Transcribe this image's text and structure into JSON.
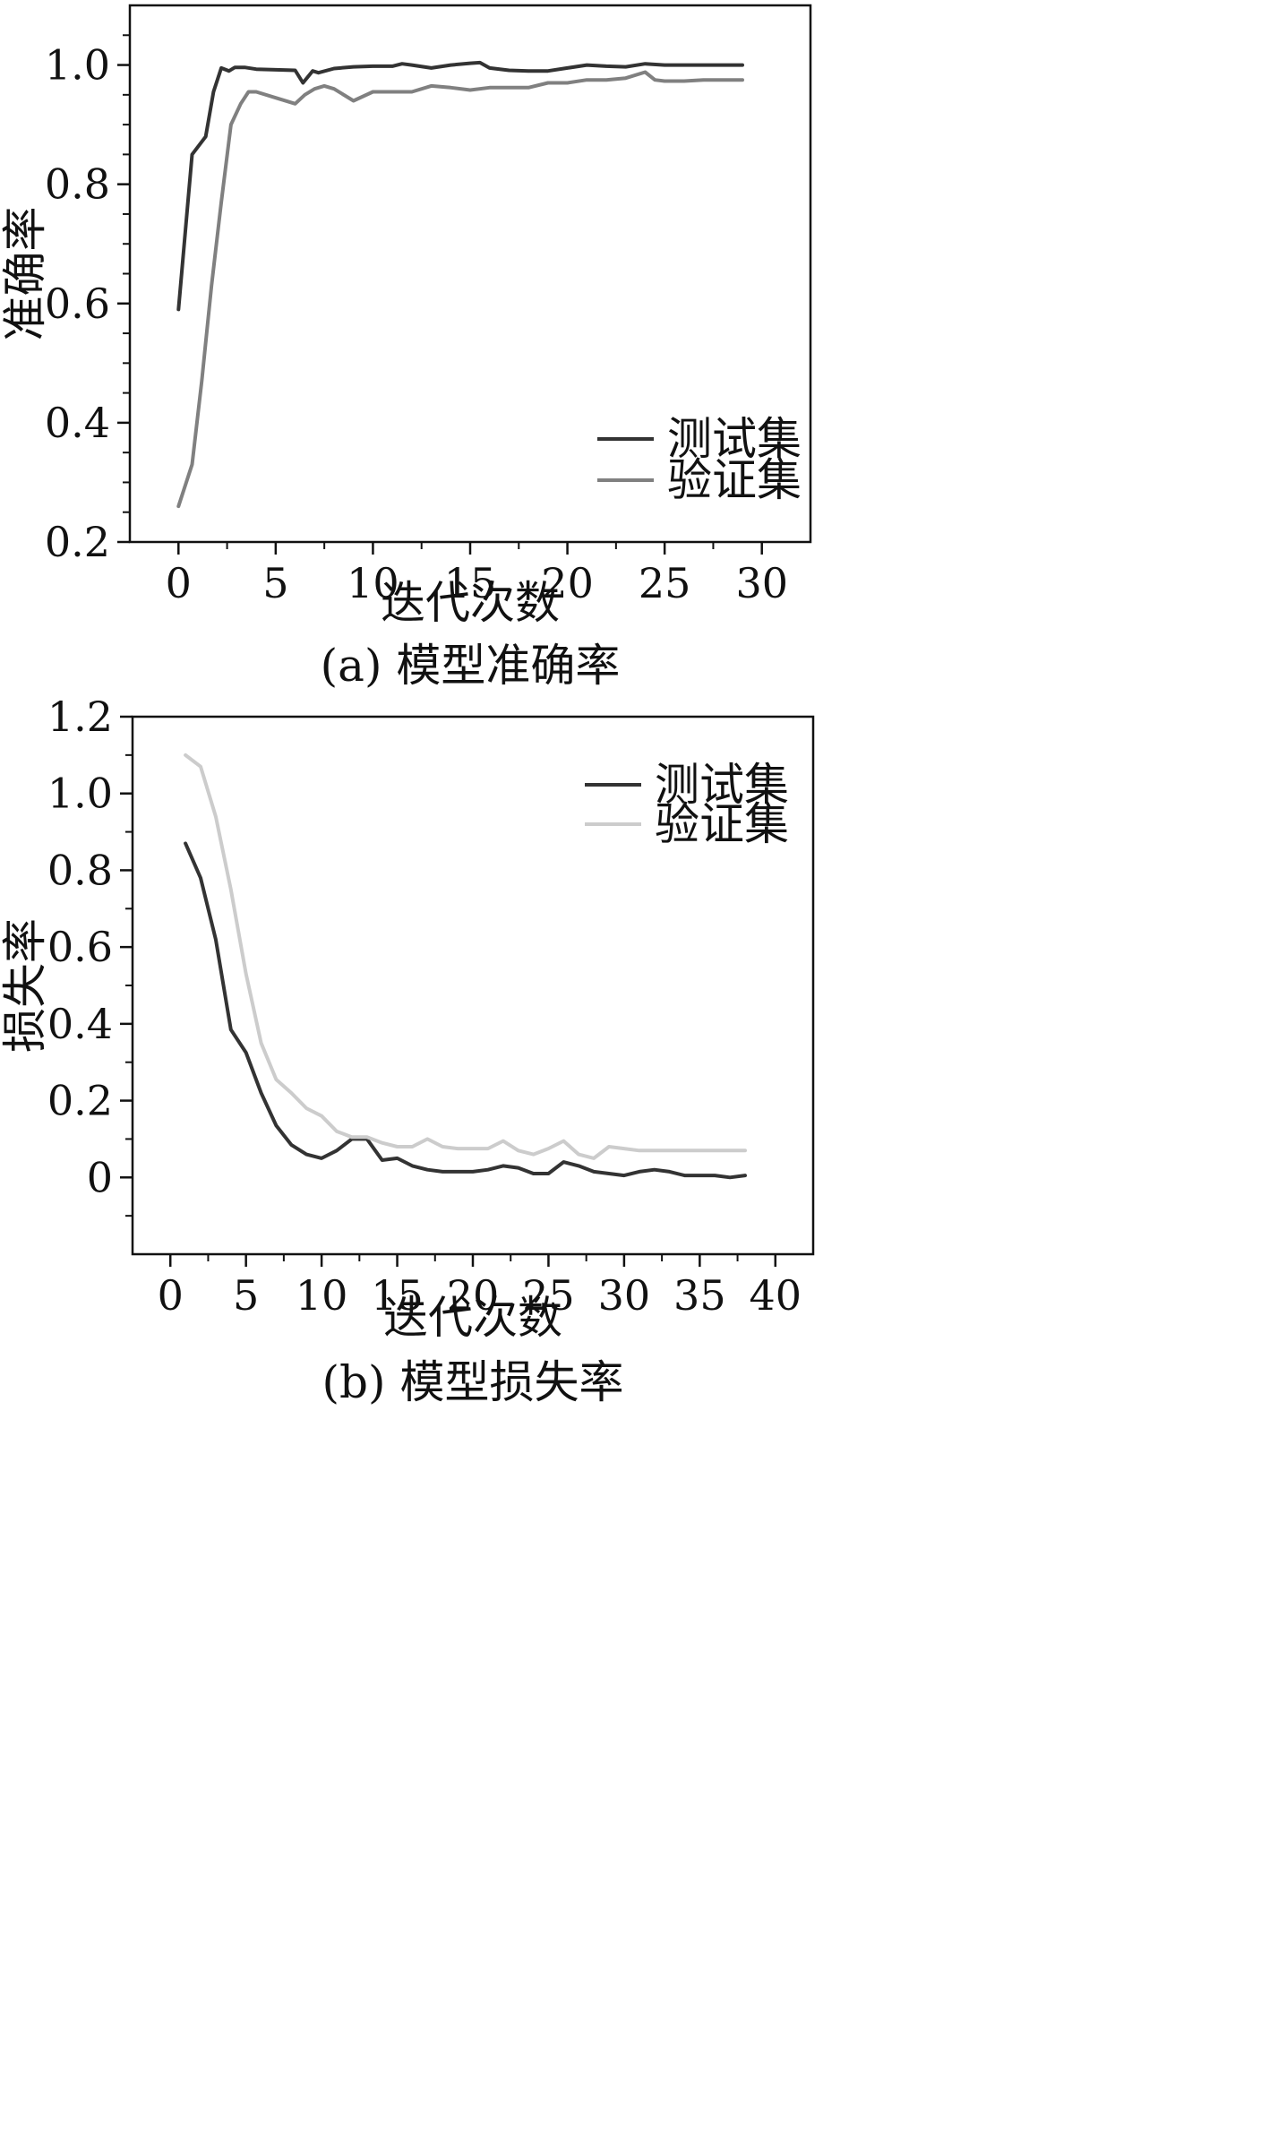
{
  "chart_data": [
    {
      "type": "line",
      "caption": "(a) 模型准确率",
      "xlabel": "迭代次数",
      "ylabel": "准确率",
      "xlim": [
        -2.5,
        32.5
      ],
      "ylim": [
        0.2,
        1.1
      ],
      "xticks": [
        0,
        5,
        10,
        15,
        20,
        25,
        30
      ],
      "yticks": [
        0.2,
        0.4,
        0.6,
        0.8,
        1.0
      ],
      "ytick_labels": [
        "0.2",
        "0.4",
        "0.6",
        "0.8",
        "1.0"
      ],
      "legend_position": "lower-right",
      "series": [
        {
          "name": "测试集",
          "color": "#333333",
          "x": [
            0,
            0.7,
            1.4,
            1.8,
            2.2,
            2.6,
            2.9,
            3.4,
            4,
            5,
            6,
            6.4,
            6.9,
            7.2,
            8,
            9,
            10,
            11,
            11.5,
            12,
            13,
            14,
            15,
            15.5,
            16,
            17,
            18,
            19,
            20,
            21,
            22,
            23,
            24,
            25,
            26,
            27,
            28,
            29
          ],
          "y": [
            0.59,
            0.85,
            0.88,
            0.955,
            0.995,
            0.99,
            0.996,
            0.996,
            0.993,
            0.992,
            0.991,
            0.97,
            0.99,
            0.987,
            0.994,
            0.997,
            0.998,
            0.998,
            1.002,
            1.0,
            0.995,
            1.0,
            1.003,
            1.004,
            0.995,
            0.991,
            0.99,
            0.99,
            0.995,
            1.0,
            0.998,
            0.997,
            1.002,
            1.0,
            1.0,
            1.0,
            1.0,
            1.0
          ]
        },
        {
          "name": "验证集",
          "color": "#808080",
          "x": [
            0,
            0.7,
            1.2,
            1.7,
            2.2,
            2.7,
            3.2,
            3.6,
            4,
            5,
            6,
            6.5,
            7,
            7.5,
            8,
            9,
            10,
            11,
            12,
            13,
            14,
            15,
            16,
            17,
            18,
            19,
            20,
            21,
            22,
            23,
            24,
            24.5,
            25,
            26,
            27,
            28,
            29
          ],
          "y": [
            0.26,
            0.33,
            0.47,
            0.63,
            0.77,
            0.9,
            0.935,
            0.955,
            0.955,
            0.945,
            0.935,
            0.95,
            0.96,
            0.965,
            0.96,
            0.94,
            0.955,
            0.955,
            0.955,
            0.965,
            0.962,
            0.958,
            0.962,
            0.962,
            0.962,
            0.97,
            0.97,
            0.975,
            0.975,
            0.978,
            0.988,
            0.975,
            0.973,
            0.973,
            0.975,
            0.975,
            0.975
          ]
        }
      ]
    },
    {
      "type": "line",
      "caption": "(b) 模型损失率",
      "xlabel": "迭代次数",
      "ylabel": "损失率",
      "xlim": [
        -2.5,
        42.5
      ],
      "ylim": [
        -0.2,
        1.2
      ],
      "xticks": [
        0,
        5,
        10,
        15,
        20,
        25,
        30,
        35,
        40
      ],
      "yticks": [
        0,
        0.2,
        0.4,
        0.6,
        0.8,
        1.0,
        1.2
      ],
      "ytick_labels": [
        "0",
        "0.2",
        "0.4",
        "0.6",
        "0.8",
        "1.0",
        "1.2"
      ],
      "legend_position": "top-right",
      "series": [
        {
          "name": "测试集",
          "color": "#333333",
          "x": [
            1,
            2,
            3,
            4,
            5,
            6,
            7,
            8,
            9,
            10,
            11,
            12,
            13,
            14,
            15,
            16,
            17,
            18,
            19,
            20,
            21,
            22,
            23,
            24,
            25,
            26,
            27,
            28,
            29,
            30,
            31,
            32,
            33,
            34,
            35,
            36,
            37,
            38
          ],
          "y": [
            0.87,
            0.78,
            0.62,
            0.385,
            0.325,
            0.22,
            0.135,
            0.085,
            0.06,
            0.05,
            0.07,
            0.1,
            0.1,
            0.045,
            0.05,
            0.03,
            0.02,
            0.015,
            0.015,
            0.015,
            0.02,
            0.03,
            0.025,
            0.01,
            0.01,
            0.04,
            0.03,
            0.015,
            0.01,
            0.005,
            0.015,
            0.02,
            0.015,
            0.005,
            0.005,
            0.005,
            0.0,
            0.005
          ]
        },
        {
          "name": "验证集",
          "color": "#cccccc",
          "x": [
            1,
            2,
            3,
            4,
            5,
            6,
            7,
            8,
            9,
            10,
            11,
            12,
            13,
            14,
            15,
            16,
            17,
            18,
            19,
            20,
            21,
            22,
            23,
            24,
            25,
            26,
            27,
            28,
            29,
            30,
            31,
            32,
            33,
            34,
            35,
            36,
            37,
            38
          ],
          "y": [
            1.1,
            1.07,
            0.94,
            0.75,
            0.53,
            0.35,
            0.255,
            0.22,
            0.18,
            0.16,
            0.12,
            0.105,
            0.105,
            0.09,
            0.08,
            0.08,
            0.1,
            0.08,
            0.075,
            0.075,
            0.075,
            0.095,
            0.07,
            0.06,
            0.075,
            0.095,
            0.06,
            0.05,
            0.08,
            0.075,
            0.07,
            0.07,
            0.07,
            0.07,
            0.07,
            0.07,
            0.07,
            0.07
          ]
        }
      ]
    }
  ]
}
